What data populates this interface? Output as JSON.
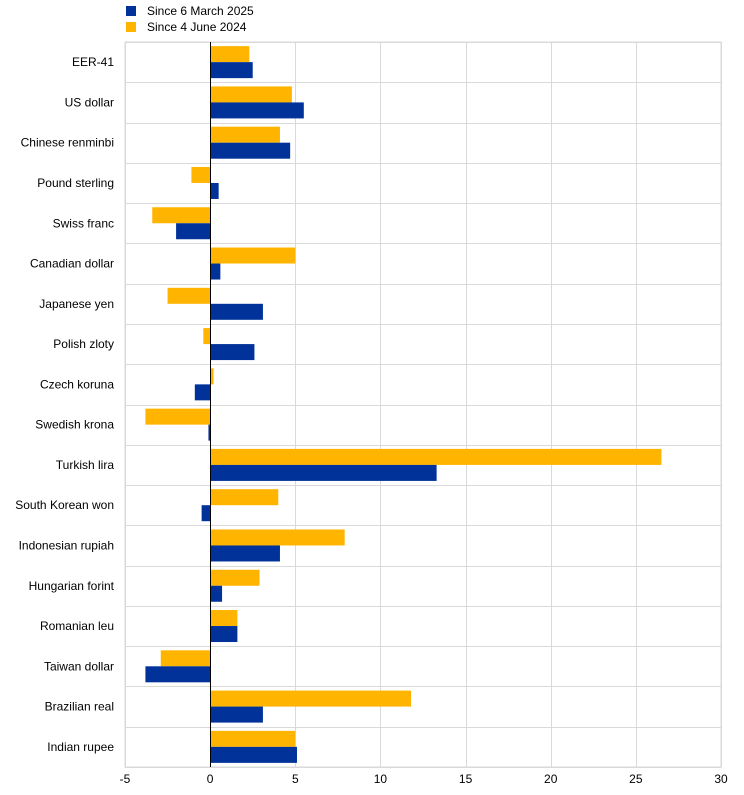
{
  "chart_data": {
    "type": "bar",
    "orientation": "horizontal",
    "title": "",
    "xlabel": "",
    "ylabel": "",
    "xlim": [
      -5,
      30
    ],
    "xticks": [
      -5,
      0,
      5,
      10,
      15,
      20,
      25,
      30
    ],
    "grid": true,
    "legend_position": "top-left",
    "categories": [
      "EER-41",
      "US dollar",
      "Chinese renminbi",
      "Pound sterling",
      "Swiss franc",
      "Canadian dollar",
      "Japanese yen",
      "Polish zloty",
      "Czech koruna",
      "Swedish krona",
      "Turkish lira",
      "South Korean won",
      "Indonesian rupiah",
      "Hungarian forint",
      "Romanian leu",
      "Taiwan dollar",
      "Brazilian real",
      "Indian rupee"
    ],
    "series": [
      {
        "name": "Since 6 March 2025",
        "color": "#003299",
        "values": [
          2.5,
          5.5,
          4.7,
          0.5,
          -2.0,
          0.6,
          3.1,
          2.6,
          -0.9,
          -0.1,
          13.3,
          -0.5,
          4.1,
          0.7,
          1.6,
          -3.8,
          3.1,
          5.1
        ]
      },
      {
        "name": "Since 4 June 2024",
        "color": "#FFB400",
        "values": [
          2.3,
          4.8,
          4.1,
          -1.1,
          -3.4,
          5.0,
          -2.5,
          -0.4,
          0.2,
          -3.8,
          26.5,
          4.0,
          7.9,
          2.9,
          1.6,
          -2.9,
          11.8,
          5.0
        ]
      }
    ]
  }
}
